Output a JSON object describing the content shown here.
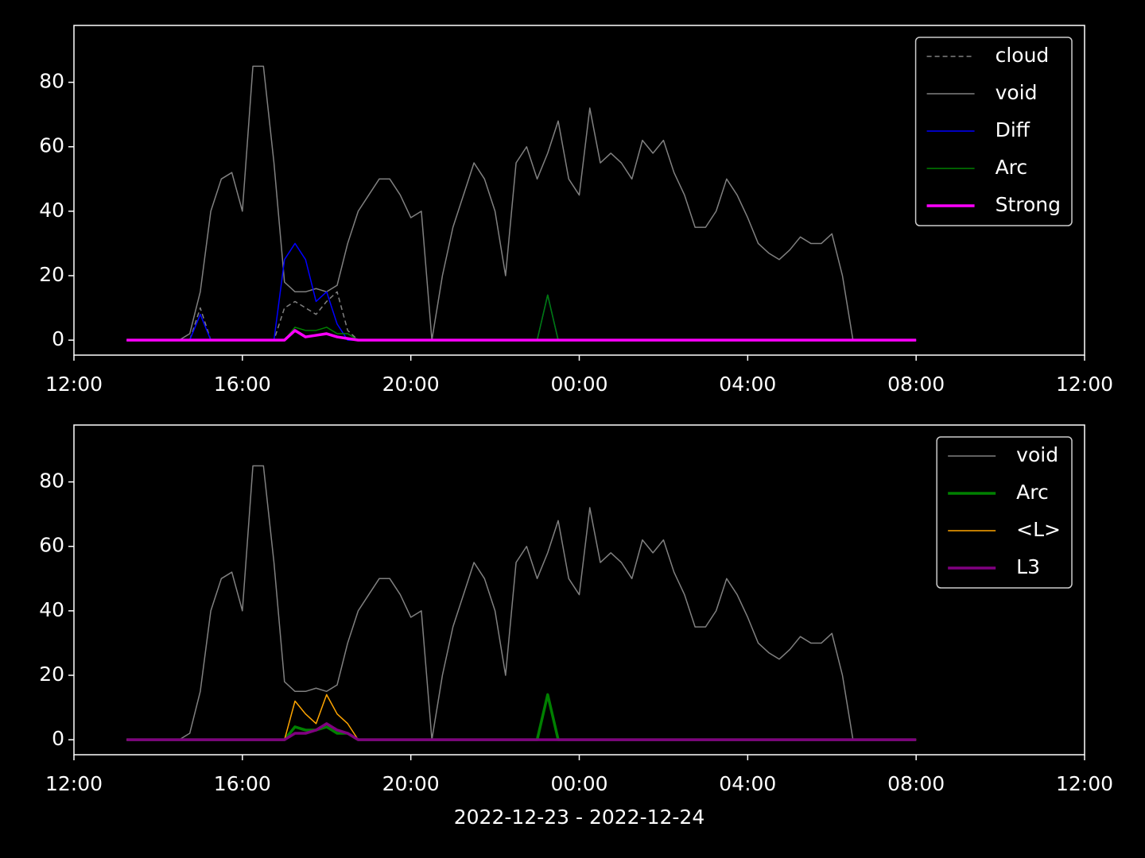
{
  "chart_data": [
    {
      "type": "line",
      "x": [
        1.25,
        1.5,
        1.75,
        2,
        2.25,
        2.5,
        2.75,
        3,
        3.25,
        3.5,
        3.75,
        4,
        4.25,
        4.5,
        4.75,
        5,
        5.25,
        5.5,
        5.75,
        6,
        6.25,
        6.5,
        6.75,
        7,
        7.25,
        7.5,
        7.75,
        8,
        8.25,
        8.5,
        8.75,
        9,
        9.25,
        9.5,
        9.75,
        10,
        10.25,
        10.5,
        10.75,
        11,
        11.25,
        11.5,
        11.75,
        12,
        12.25,
        12.5,
        12.75,
        13,
        13.25,
        13.5,
        13.75,
        14,
        14.25,
        14.5,
        14.75,
        15,
        15.25,
        15.5,
        15.75,
        16,
        16.25,
        16.5,
        16.75,
        17,
        17.25,
        17.5,
        17.75,
        18,
        18.25,
        18.5,
        18.75,
        19,
        19.25,
        19.5,
        19.75,
        20
      ],
      "xlim": [
        0,
        24
      ],
      "xticks": [
        {
          "value": 0,
          "label": "12:00"
        },
        {
          "value": 4,
          "label": "16:00"
        },
        {
          "value": 8,
          "label": "20:00"
        },
        {
          "value": 12,
          "label": "00:00"
        },
        {
          "value": 16,
          "label": "04:00"
        },
        {
          "value": 20,
          "label": "08:00"
        },
        {
          "value": 24,
          "label": "12:00"
        }
      ],
      "ylim": [
        -4.65,
        97.65
      ],
      "yticks": [
        0,
        20,
        40,
        60,
        80
      ],
      "legend": "upper right",
      "series": [
        {
          "name": "cloud",
          "color": "#808080",
          "width": 1.5,
          "linestyle": "dashed",
          "values": [
            0,
            0,
            0,
            0,
            0,
            0,
            0,
            10,
            0,
            0,
            0,
            0,
            0,
            0,
            0,
            10,
            12,
            10,
            8,
            12,
            15,
            3,
            0,
            0,
            0,
            0,
            0,
            0,
            0,
            0,
            0,
            0,
            0,
            0,
            0,
            0,
            0,
            0,
            0,
            0,
            0,
            0,
            0,
            0,
            0,
            0,
            0,
            0,
            0,
            0,
            0,
            0,
            0,
            0,
            0,
            0,
            0,
            0,
            0,
            0,
            0,
            0,
            0,
            0,
            0,
            0,
            0,
            0,
            0,
            0,
            0,
            0,
            0,
            0,
            0,
            0
          ]
        },
        {
          "name": "void",
          "color": "#808080",
          "width": 1.5,
          "linestyle": "solid",
          "values": [
            0,
            0,
            0,
            0,
            0,
            0,
            2,
            15,
            40,
            50,
            52,
            40,
            85,
            85,
            55,
            18,
            15,
            15,
            16,
            15,
            17,
            30,
            40,
            45,
            50,
            50,
            45,
            38,
            40,
            0,
            20,
            35,
            45,
            55,
            50,
            40,
            20,
            55,
            60,
            50,
            58,
            68,
            50,
            45,
            72,
            55,
            58,
            55,
            50,
            62,
            58,
            62,
            52,
            45,
            35,
            35,
            40,
            50,
            45,
            38,
            30,
            27,
            25,
            28,
            32,
            30,
            30,
            33,
            20,
            0,
            0,
            0,
            0,
            0,
            0,
            0
          ]
        },
        {
          "name": "Diff",
          "color": "#0000ff",
          "width": 1.5,
          "linestyle": "solid",
          "values": [
            0,
            0,
            0,
            0,
            0,
            0,
            0,
            8,
            0,
            0,
            0,
            0,
            0,
            0,
            0,
            25,
            30,
            25,
            12,
            15,
            5,
            0,
            0,
            0,
            0,
            0,
            0,
            0,
            0,
            0,
            0,
            0,
            0,
            0,
            0,
            0,
            0,
            0,
            0,
            0,
            14,
            0,
            0,
            0,
            0,
            0,
            0,
            0,
            0,
            0,
            0,
            0,
            0,
            0,
            0,
            0,
            0,
            0,
            0,
            0,
            0,
            0,
            0,
            0,
            0,
            0,
            0,
            0,
            0,
            0,
            0,
            0,
            0,
            0,
            0,
            0
          ]
        },
        {
          "name": "Arc",
          "color": "#008000",
          "width": 1.5,
          "linestyle": "solid",
          "values": [
            0,
            0,
            0,
            0,
            0,
            0,
            0,
            0,
            0,
            0,
            0,
            0,
            0,
            0,
            0,
            0,
            4,
            3,
            3,
            4,
            2,
            2,
            0,
            0,
            0,
            0,
            0,
            0,
            0,
            0,
            0,
            0,
            0,
            0,
            0,
            0,
            0,
            0,
            0,
            0,
            14,
            0,
            0,
            0,
            0,
            0,
            0,
            0,
            0,
            0,
            0,
            0,
            0,
            0,
            0,
            0,
            0,
            0,
            0,
            0,
            0,
            0,
            0,
            0,
            0,
            0,
            0,
            0,
            0,
            0,
            0,
            0,
            0,
            0,
            0,
            0
          ]
        },
        {
          "name": "Strong",
          "color": "#ff00ff",
          "width": 3.5,
          "linestyle": "solid",
          "values": [
            0,
            0,
            0,
            0,
            0,
            0,
            0,
            0,
            0,
            0,
            0,
            0,
            0,
            0,
            0,
            0,
            3,
            1,
            1.5,
            2,
            1,
            0.5,
            0,
            0,
            0,
            0,
            0,
            0,
            0,
            0,
            0,
            0,
            0,
            0,
            0,
            0,
            0,
            0,
            0,
            0,
            0,
            0,
            0,
            0,
            0,
            0,
            0,
            0,
            0,
            0,
            0,
            0,
            0,
            0,
            0,
            0,
            0,
            0,
            0,
            0,
            0,
            0,
            0,
            0,
            0,
            0,
            0,
            0,
            0,
            0,
            0,
            0,
            0,
            0,
            0,
            0
          ]
        }
      ]
    },
    {
      "type": "line",
      "xlabel": "2022-12-23 - 2022-12-24",
      "x": [
        1.25,
        1.5,
        1.75,
        2,
        2.25,
        2.5,
        2.75,
        3,
        3.25,
        3.5,
        3.75,
        4,
        4.25,
        4.5,
        4.75,
        5,
        5.25,
        5.5,
        5.75,
        6,
        6.25,
        6.5,
        6.75,
        7,
        7.25,
        7.5,
        7.75,
        8,
        8.25,
        8.5,
        8.75,
        9,
        9.25,
        9.5,
        9.75,
        10,
        10.25,
        10.5,
        10.75,
        11,
        11.25,
        11.5,
        11.75,
        12,
        12.25,
        12.5,
        12.75,
        13,
        13.25,
        13.5,
        13.75,
        14,
        14.25,
        14.5,
        14.75,
        15,
        15.25,
        15.5,
        15.75,
        16,
        16.25,
        16.5,
        16.75,
        17,
        17.25,
        17.5,
        17.75,
        18,
        18.25,
        18.5,
        18.75,
        19,
        19.25,
        19.5,
        19.75,
        20
      ],
      "xlim": [
        0,
        24
      ],
      "xticks": [
        {
          "value": 0,
          "label": "12:00"
        },
        {
          "value": 4,
          "label": "16:00"
        },
        {
          "value": 8,
          "label": "20:00"
        },
        {
          "value": 12,
          "label": "00:00"
        },
        {
          "value": 16,
          "label": "04:00"
        },
        {
          "value": 20,
          "label": "08:00"
        },
        {
          "value": 24,
          "label": "12:00"
        }
      ],
      "ylim": [
        -4.65,
        97.65
      ],
      "yticks": [
        0,
        20,
        40,
        60,
        80
      ],
      "legend": "upper right",
      "series": [
        {
          "name": "void",
          "color": "#808080",
          "width": 1.5,
          "linestyle": "solid",
          "values": [
            0,
            0,
            0,
            0,
            0,
            0,
            2,
            15,
            40,
            50,
            52,
            40,
            85,
            85,
            55,
            18,
            15,
            15,
            16,
            15,
            17,
            30,
            40,
            45,
            50,
            50,
            45,
            38,
            40,
            0,
            20,
            35,
            45,
            55,
            50,
            40,
            20,
            55,
            60,
            50,
            58,
            68,
            50,
            45,
            72,
            55,
            58,
            55,
            50,
            62,
            58,
            62,
            52,
            45,
            35,
            35,
            40,
            50,
            45,
            38,
            30,
            27,
            25,
            28,
            32,
            30,
            30,
            33,
            20,
            0,
            0,
            0,
            0,
            0,
            0,
            0
          ]
        },
        {
          "name": "Arc",
          "color": "#008000",
          "width": 3.5,
          "linestyle": "solid",
          "values": [
            0,
            0,
            0,
            0,
            0,
            0,
            0,
            0,
            0,
            0,
            0,
            0,
            0,
            0,
            0,
            0,
            4,
            3,
            3,
            4,
            2,
            2,
            0,
            0,
            0,
            0,
            0,
            0,
            0,
            0,
            0,
            0,
            0,
            0,
            0,
            0,
            0,
            0,
            0,
            0,
            14,
            0,
            0,
            0,
            0,
            0,
            0,
            0,
            0,
            0,
            0,
            0,
            0,
            0,
            0,
            0,
            0,
            0,
            0,
            0,
            0,
            0,
            0,
            0,
            0,
            0,
            0,
            0,
            0,
            0,
            0,
            0,
            0,
            0,
            0,
            0
          ]
        },
        {
          "name": "<L>",
          "color": "#ffa500",
          "width": 1.5,
          "linestyle": "solid",
          "values": [
            0,
            0,
            0,
            0,
            0,
            0,
            0,
            0,
            0,
            0,
            0,
            0,
            0,
            0,
            0,
            0,
            12,
            8,
            5,
            14,
            8,
            5,
            0,
            0,
            0,
            0,
            0,
            0,
            0,
            0,
            0,
            0,
            0,
            0,
            0,
            0,
            0,
            0,
            0,
            0,
            0,
            0,
            0,
            0,
            0,
            0,
            0,
            0,
            0,
            0,
            0,
            0,
            0,
            0,
            0,
            0,
            0,
            0,
            0,
            0,
            0,
            0,
            0,
            0,
            0,
            0,
            0,
            0,
            0,
            0,
            0,
            0,
            0,
            0,
            0,
            0
          ]
        },
        {
          "name": "L3",
          "color": "#800080",
          "width": 3.5,
          "linestyle": "solid",
          "values": [
            0,
            0,
            0,
            0,
            0,
            0,
            0,
            0,
            0,
            0,
            0,
            0,
            0,
            0,
            0,
            0,
            2,
            2,
            3,
            5,
            3,
            2,
            0,
            0,
            0,
            0,
            0,
            0,
            0,
            0,
            0,
            0,
            0,
            0,
            0,
            0,
            0,
            0,
            0,
            0,
            0,
            0,
            0,
            0,
            0,
            0,
            0,
            0,
            0,
            0,
            0,
            0,
            0,
            0,
            0,
            0,
            0,
            0,
            0,
            0,
            0,
            0,
            0,
            0,
            0,
            0,
            0,
            0,
            0,
            0,
            0,
            0,
            0,
            0,
            0,
            0
          ]
        }
      ]
    }
  ]
}
